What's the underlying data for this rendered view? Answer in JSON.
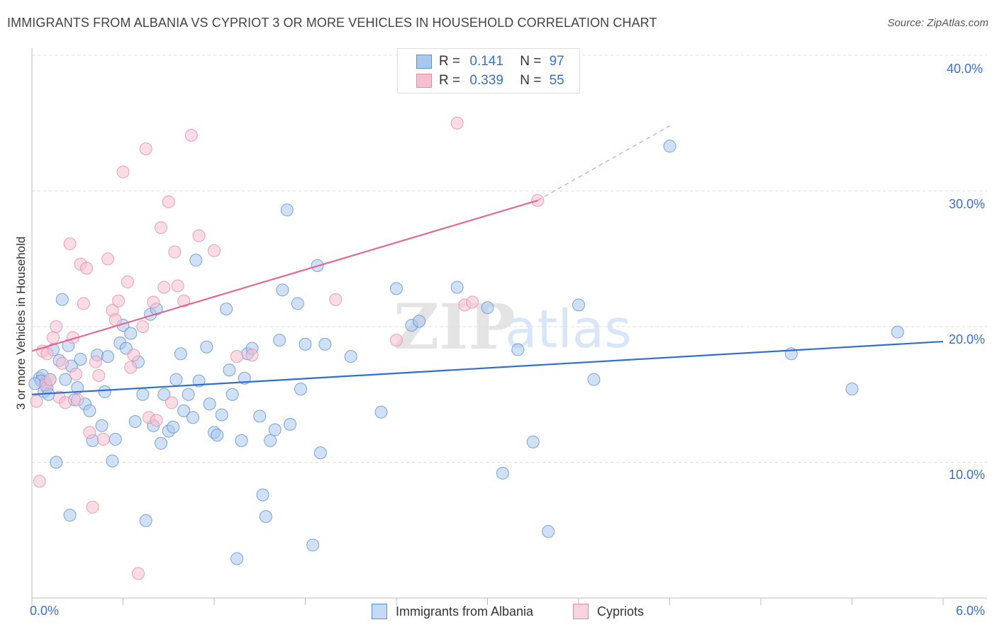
{
  "header": {
    "title": "IMMIGRANTS FROM ALBANIA VS CYPRIOT 3 OR MORE VEHICLES IN HOUSEHOLD CORRELATION CHART",
    "source": "Source: ZipAtlas.com"
  },
  "legend_top": {
    "rows": [
      {
        "r_label": "R =",
        "r_value": "0.141",
        "n_label": "N =",
        "n_value": "97"
      },
      {
        "r_label": "R =",
        "r_value": "0.339",
        "n_label": "N =",
        "n_value": "55"
      }
    ]
  },
  "legend_bottom": {
    "items": [
      "Immigrants from Albania",
      "Cypriots"
    ]
  },
  "watermark": {
    "part1": "ZIP",
    "part2": "atlas"
  },
  "colors": {
    "blue_fill": "#a9c8ef",
    "blue_stroke": "#5b8fd6",
    "blue_line": "#2f6fcf",
    "pink_fill": "#f6bfd0",
    "pink_stroke": "#e58aa8",
    "pink_line": "#e06a93",
    "tick_text": "#3a6fcf",
    "grid": "#dddddd"
  },
  "chart_data": {
    "type": "scatter",
    "title": "IMMIGRANTS FROM ALBANIA VS CYPRIOT 3 OR MORE VEHICLES IN HOUSEHOLD CORRELATION CHART",
    "xlabel": "",
    "ylabel": "3 or more Vehicles in Household",
    "xlim": [
      0,
      6
    ],
    "ylim": [
      0,
      40
    ],
    "x_tick_labels": [
      "0.0%",
      "6.0%"
    ],
    "y_ticks": [
      10,
      20,
      30,
      40
    ],
    "y_tick_labels": [
      "10.0%",
      "20.0%",
      "30.0%",
      "40.0%"
    ],
    "grid": true,
    "legend_placement": "bottom",
    "series": [
      {
        "name": "Immigrants from Albania",
        "color": "#5b8fd6",
        "trend": {
          "x0": 0.0,
          "y0": 15.0,
          "x1": 6.0,
          "y1": 18.9,
          "dashed_from": null
        },
        "points": [
          [
            0.05,
            16.2
          ],
          [
            0.07,
            16.4
          ],
          [
            0.08,
            15.2
          ],
          [
            0.09,
            15.9
          ],
          [
            0.06,
            16.0
          ],
          [
            0.1,
            15.5
          ],
          [
            0.12,
            16.1
          ],
          [
            0.11,
            15.0
          ],
          [
            0.14,
            18.3
          ],
          [
            0.16,
            10.0
          ],
          [
            0.18,
            17.5
          ],
          [
            0.2,
            22.0
          ],
          [
            0.22,
            16.1
          ],
          [
            0.24,
            18.6
          ],
          [
            0.26,
            17.1
          ],
          [
            0.28,
            14.6
          ],
          [
            0.3,
            15.5
          ],
          [
            0.32,
            17.6
          ],
          [
            0.35,
            14.3
          ],
          [
            0.38,
            13.8
          ],
          [
            0.4,
            11.6
          ],
          [
            0.43,
            17.9
          ],
          [
            0.46,
            12.7
          ],
          [
            0.48,
            15.2
          ],
          [
            0.5,
            17.8
          ],
          [
            0.53,
            10.1
          ],
          [
            0.55,
            11.7
          ],
          [
            0.58,
            18.8
          ],
          [
            0.6,
            20.1
          ],
          [
            0.62,
            18.4
          ],
          [
            0.65,
            19.5
          ],
          [
            0.68,
            13.0
          ],
          [
            0.7,
            17.4
          ],
          [
            0.73,
            15.0
          ],
          [
            0.75,
            5.7
          ],
          [
            0.78,
            20.9
          ],
          [
            0.8,
            12.7
          ],
          [
            0.82,
            21.3
          ],
          [
            0.85,
            11.4
          ],
          [
            0.87,
            15.0
          ],
          [
            0.9,
            12.3
          ],
          [
            0.93,
            12.6
          ],
          [
            0.95,
            16.1
          ],
          [
            0.98,
            18.0
          ],
          [
            1.0,
            13.8
          ],
          [
            1.03,
            15.0
          ],
          [
            1.06,
            13.3
          ],
          [
            1.08,
            24.9
          ],
          [
            1.1,
            16.0
          ],
          [
            1.15,
            18.5
          ],
          [
            1.17,
            14.3
          ],
          [
            1.2,
            12.2
          ],
          [
            1.22,
            12.0
          ],
          [
            1.25,
            13.5
          ],
          [
            1.28,
            21.3
          ],
          [
            1.3,
            16.8
          ],
          [
            1.32,
            15.0
          ],
          [
            1.35,
            2.9
          ],
          [
            1.38,
            11.6
          ],
          [
            1.4,
            16.2
          ],
          [
            1.42,
            18.0
          ],
          [
            1.45,
            18.4
          ],
          [
            1.5,
            13.4
          ],
          [
            1.52,
            7.6
          ],
          [
            1.54,
            6.0
          ],
          [
            1.57,
            11.6
          ],
          [
            1.6,
            12.4
          ],
          [
            1.63,
            19.0
          ],
          [
            1.65,
            22.7
          ],
          [
            1.68,
            28.6
          ],
          [
            1.7,
            12.8
          ],
          [
            1.75,
            21.7
          ],
          [
            1.77,
            15.4
          ],
          [
            1.8,
            18.7
          ],
          [
            1.85,
            3.9
          ],
          [
            1.88,
            24.5
          ],
          [
            1.9,
            10.7
          ],
          [
            1.93,
            18.7
          ],
          [
            2.1,
            17.8
          ],
          [
            2.3,
            13.7
          ],
          [
            2.4,
            22.8
          ],
          [
            2.5,
            20.1
          ],
          [
            2.55,
            20.4
          ],
          [
            2.8,
            22.9
          ],
          [
            3.0,
            21.4
          ],
          [
            3.1,
            9.2
          ],
          [
            3.2,
            18.3
          ],
          [
            3.3,
            11.5
          ],
          [
            3.4,
            4.9
          ],
          [
            3.7,
            16.1
          ],
          [
            3.6,
            21.6
          ],
          [
            4.2,
            33.3
          ],
          [
            5.0,
            18.0
          ],
          [
            5.4,
            15.4
          ],
          [
            5.7,
            19.6
          ],
          [
            0.02,
            15.8
          ],
          [
            0.25,
            6.1
          ]
        ]
      },
      {
        "name": "Cypriots",
        "color": "#e58aa8",
        "trend": {
          "x0": 0.0,
          "y0": 18.2,
          "x1": 3.33,
          "y1": 29.3,
          "x2": 4.2,
          "y2": 34.8
        },
        "points": [
          [
            0.03,
            14.5
          ],
          [
            0.05,
            8.6
          ],
          [
            0.07,
            18.2
          ],
          [
            0.09,
            15.7
          ],
          [
            0.1,
            18.0
          ],
          [
            0.12,
            16.1
          ],
          [
            0.14,
            19.2
          ],
          [
            0.16,
            20.0
          ],
          [
            0.18,
            14.8
          ],
          [
            0.2,
            17.3
          ],
          [
            0.22,
            14.4
          ],
          [
            0.25,
            26.1
          ],
          [
            0.27,
            19.2
          ],
          [
            0.29,
            16.5
          ],
          [
            0.3,
            14.6
          ],
          [
            0.32,
            24.6
          ],
          [
            0.34,
            21.7
          ],
          [
            0.36,
            24.3
          ],
          [
            0.38,
            12.2
          ],
          [
            0.4,
            6.7
          ],
          [
            0.42,
            17.4
          ],
          [
            0.44,
            16.4
          ],
          [
            0.47,
            11.7
          ],
          [
            0.5,
            25.0
          ],
          [
            0.53,
            21.2
          ],
          [
            0.55,
            20.5
          ],
          [
            0.57,
            21.9
          ],
          [
            0.6,
            31.4
          ],
          [
            0.63,
            23.3
          ],
          [
            0.65,
            17.0
          ],
          [
            0.67,
            17.9
          ],
          [
            0.7,
            1.8
          ],
          [
            0.73,
            20.0
          ],
          [
            0.75,
            33.1
          ],
          [
            0.77,
            13.3
          ],
          [
            0.8,
            21.8
          ],
          [
            0.82,
            13.1
          ],
          [
            0.85,
            27.3
          ],
          [
            0.87,
            22.9
          ],
          [
            0.9,
            29.2
          ],
          [
            0.92,
            14.4
          ],
          [
            0.94,
            25.5
          ],
          [
            0.96,
            23.0
          ],
          [
            1.0,
            21.9
          ],
          [
            1.05,
            34.1
          ],
          [
            1.1,
            26.7
          ],
          [
            1.2,
            25.6
          ],
          [
            1.35,
            17.8
          ],
          [
            1.45,
            17.9
          ],
          [
            2.0,
            22.0
          ],
          [
            2.4,
            19.0
          ],
          [
            2.8,
            35.0
          ],
          [
            2.85,
            21.6
          ],
          [
            2.9,
            21.8
          ],
          [
            3.33,
            29.3
          ]
        ]
      }
    ]
  }
}
